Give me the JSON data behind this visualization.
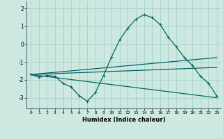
{
  "xlabel": "Humidex (Indice chaleur)",
  "background_color": "#cce8e0",
  "grid_color": "#aad4cc",
  "line_color": "#006666",
  "xlim": [
    -0.5,
    23.5
  ],
  "ylim": [
    -3.6,
    2.4
  ],
  "yticks": [
    -3,
    -2,
    -1,
    0,
    1,
    2
  ],
  "xticks": [
    0,
    1,
    2,
    3,
    4,
    5,
    6,
    7,
    8,
    9,
    10,
    11,
    12,
    13,
    14,
    15,
    16,
    17,
    18,
    19,
    20,
    21,
    22,
    23
  ],
  "series": [
    {
      "x": [
        0,
        1,
        2,
        3,
        4,
        5,
        6,
        7,
        8,
        9,
        10,
        11,
        12,
        13,
        14,
        15,
        16,
        17,
        18,
        19,
        20,
        21,
        22,
        23
      ],
      "y": [
        -1.7,
        -1.85,
        -1.75,
        -1.8,
        -2.2,
        -2.4,
        -2.9,
        -3.2,
        -2.7,
        -1.75,
        -0.7,
        0.25,
        0.9,
        1.4,
        1.65,
        1.5,
        1.1,
        0.4,
        -0.15,
        -0.75,
        -1.2,
        -1.8,
        -2.2,
        -2.9
      ]
    },
    {
      "x": [
        0,
        23
      ],
      "y": [
        -1.7,
        -0.75
      ]
    },
    {
      "x": [
        0,
        23
      ],
      "y": [
        -1.7,
        -1.3
      ]
    },
    {
      "x": [
        0,
        23
      ],
      "y": [
        -1.7,
        -3.0
      ]
    }
  ]
}
